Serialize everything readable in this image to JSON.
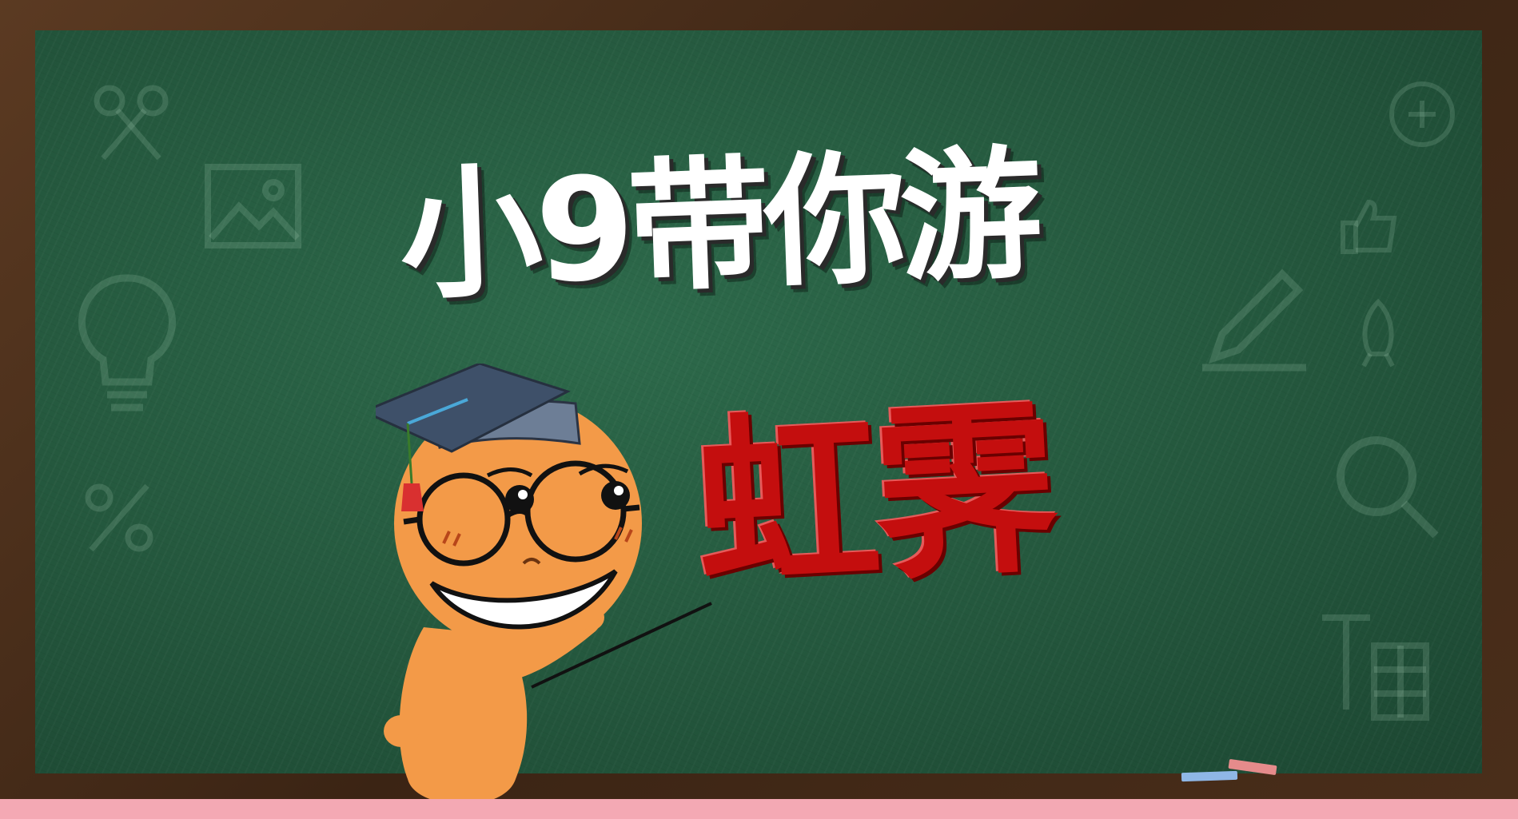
{
  "title": "小9带你游",
  "subtitle": "虹霁",
  "colors": {
    "board": "#24573d",
    "frame": "#3b2414",
    "title_text": "#ffffff",
    "subtitle_text": "#c40e0e",
    "mascot_skin": "#f39a48",
    "cap": "#3e5069",
    "floor": "#f4a9b4"
  },
  "icons": [
    "scissors-icon",
    "image-icon",
    "lightbulb-icon",
    "pencil-icon",
    "magnifier-icon",
    "rocket-icon",
    "thumbs-up-icon",
    "percent-icon",
    "text-icon"
  ]
}
